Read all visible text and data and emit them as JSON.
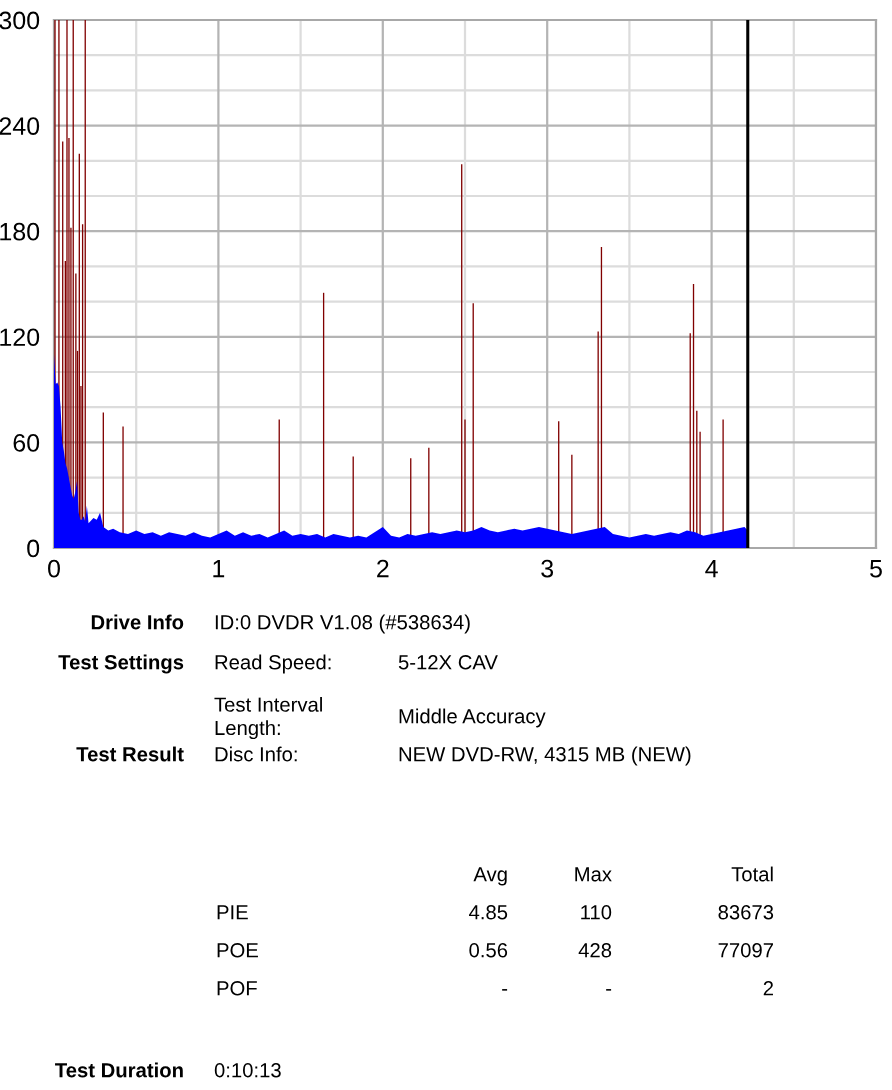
{
  "chart_data": {
    "type": "bar",
    "xlim": [
      0,
      5
    ],
    "xticks": [
      0,
      {
        "value": 0.5,
        "label": null
      },
      1,
      {
        "value": 1.5,
        "label": null
      },
      2,
      {
        "value": 2.5,
        "label": null
      },
      3,
      {
        "value": 3.5,
        "label": null
      },
      4,
      {
        "value": 4.5,
        "label": null
      },
      5
    ],
    "ylim": [
      0,
      300
    ],
    "yticks": [
      0,
      {
        "value": 20,
        "label": null
      },
      {
        "value": 40,
        "label": null
      },
      60,
      {
        "value": 80,
        "label": null
      },
      {
        "value": 100,
        "label": null
      },
      120,
      {
        "value": 140,
        "label": null
      },
      {
        "value": 160,
        "label": null
      },
      180,
      {
        "value": 200,
        "label": null
      },
      {
        "value": 220,
        "label": null
      },
      240,
      {
        "value": 260,
        "label": null
      },
      {
        "value": 280,
        "label": null
      },
      300
    ],
    "grid": true,
    "ref_lines": [
      {
        "axis": "x",
        "value": 4.22,
        "color": "#000000"
      }
    ],
    "series": [
      {
        "color": "#800000",
        "x": [
          0.006,
          0.03,
          0.053,
          0.069,
          0.079,
          0.091,
          0.103,
          0.117,
          0.133,
          0.143,
          0.154,
          0.164,
          0.174,
          0.19,
          0.3,
          0.42,
          1.37,
          1.64,
          1.82,
          2.17,
          2.28,
          2.48,
          2.5,
          2.55,
          3.07,
          3.15,
          3.31,
          3.33,
          3.87,
          3.89,
          3.91,
          3.93,
          4.07
        ],
        "values": [
          300,
          300,
          231,
          163,
          300,
          233,
          182,
          300,
          156,
          112,
          224,
          92,
          184,
          300,
          77,
          69,
          73,
          145,
          52,
          51,
          57,
          218,
          73,
          139,
          72,
          53,
          123,
          171,
          122,
          150,
          78,
          66,
          73
        ]
      },
      {
        "type": "area",
        "color": "#0000ff",
        "x": [
          0,
          0.01,
          0.02,
          0.03,
          0.04,
          0.05,
          0.06,
          0.07,
          0.08,
          0.09,
          0.1,
          0.11,
          0.12,
          0.13,
          0.14,
          0.15,
          0.16,
          0.17,
          0.18,
          0.19,
          0.2,
          0.21,
          0.22,
          0.24,
          0.26,
          0.28,
          0.3,
          0.33,
          0.36,
          0.4,
          0.45,
          0.5,
          0.55,
          0.6,
          0.65,
          0.7,
          0.75,
          0.8,
          0.85,
          0.9,
          0.95,
          1,
          1.05,
          1.1,
          1.15,
          1.2,
          1.25,
          1.3,
          1.35,
          1.4,
          1.45,
          1.5,
          1.55,
          1.6,
          1.65,
          1.7,
          1.75,
          1.8,
          1.85,
          1.9,
          1.95,
          2,
          2.05,
          2.1,
          2.15,
          2.2,
          2.25,
          2.3,
          2.35,
          2.4,
          2.45,
          2.5,
          2.55,
          2.6,
          2.65,
          2.7,
          2.75,
          2.8,
          2.85,
          2.9,
          2.95,
          3,
          3.05,
          3.1,
          3.15,
          3.2,
          3.25,
          3.3,
          3.35,
          3.4,
          3.45,
          3.5,
          3.55,
          3.6,
          3.65,
          3.7,
          3.75,
          3.8,
          3.85,
          3.9,
          3.95,
          4,
          4.05,
          4.1,
          4.15,
          4.2,
          4.22
        ],
        "values": [
          110,
          93,
          94,
          92,
          80,
          60,
          55,
          48,
          45,
          40,
          35,
          30,
          28,
          32,
          38,
          20,
          16,
          16,
          18,
          15,
          24,
          14,
          15,
          17,
          16,
          20,
          12,
          10,
          11,
          9,
          8,
          10,
          8,
          9,
          7,
          9,
          8,
          7,
          9,
          7,
          6,
          8,
          10,
          7,
          9,
          7,
          8,
          6,
          8,
          10,
          7,
          8,
          7,
          8,
          6,
          8,
          7,
          6,
          7,
          6,
          9,
          12,
          7,
          6,
          8,
          7,
          8,
          9,
          8,
          9,
          10,
          9,
          10,
          12,
          10,
          9,
          10,
          11,
          10,
          11,
          12,
          11,
          10,
          9,
          8,
          9,
          10,
          11,
          12,
          8,
          7,
          6,
          7,
          8,
          7,
          8,
          9,
          8,
          10,
          9,
          7,
          8,
          9,
          10,
          11,
          12,
          10
        ]
      }
    ],
    "annotations": [
      "Drive Info",
      "ID:0 DVDR V1.08 (#538634)",
      "Test Settings",
      "Read Speed:",
      "5-12X CAV",
      "Test Interval\nLength:",
      "Middle Accuracy",
      "Test Result",
      "Disc Info:",
      "NEW DVD-RW, 4315 MB (NEW)",
      "Avg",
      "Max",
      "Total",
      "PIE",
      "4.85",
      "110",
      "83673",
      "POE",
      "0.56",
      "428",
      "77097",
      "POF",
      "-",
      "-",
      "2",
      "Test Duration",
      "0:10:13"
    ]
  }
}
